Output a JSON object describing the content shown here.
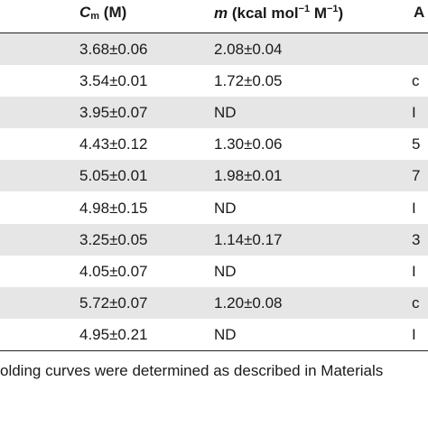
{
  "table": {
    "headers": {
      "cm": {
        "symbol": "C",
        "subscript": "m",
        "unit": "(M)"
      },
      "m": {
        "symbol": "m",
        "unit_pre": "(kcal mol",
        "sup1": "−1",
        "unit_mid": " M",
        "sup2": "−1",
        "unit_post": ")"
      },
      "partial_last": "A"
    },
    "rows": [
      {
        "cm": "3.68±0.06",
        "m": "2.08±0.04",
        "partial": ""
      },
      {
        "cm": "3.54±0.01",
        "m": "1.72±0.05",
        "partial": "c"
      },
      {
        "cm": "3.95±0.07",
        "m": "ND",
        "partial": "I"
      },
      {
        "cm": "4.43±0.12",
        "m": "1.30±0.06",
        "partial": "5"
      },
      {
        "cm": "5.05±0.01",
        "m": "1.98±0.01",
        "partial": "7"
      },
      {
        "cm": "4.98±0.15",
        "m": "ND",
        "partial": "I"
      },
      {
        "cm": "3.25±0.05",
        "m": "1.14±0.17",
        "partial": "3"
      },
      {
        "cm": "4.05±0.07",
        "m": "ND",
        "partial": "I"
      },
      {
        "cm": "5.72±0.07",
        "m": "1.20±0.08",
        "partial": "c"
      },
      {
        "cm": "4.95±0.21",
        "m": "ND",
        "partial": "I"
      }
    ]
  },
  "footnote": "olding curves were determined as described in Materials",
  "colors": {
    "stripe": "#e6e6e6",
    "rule": "#222222",
    "text": "#1a1a1a"
  }
}
